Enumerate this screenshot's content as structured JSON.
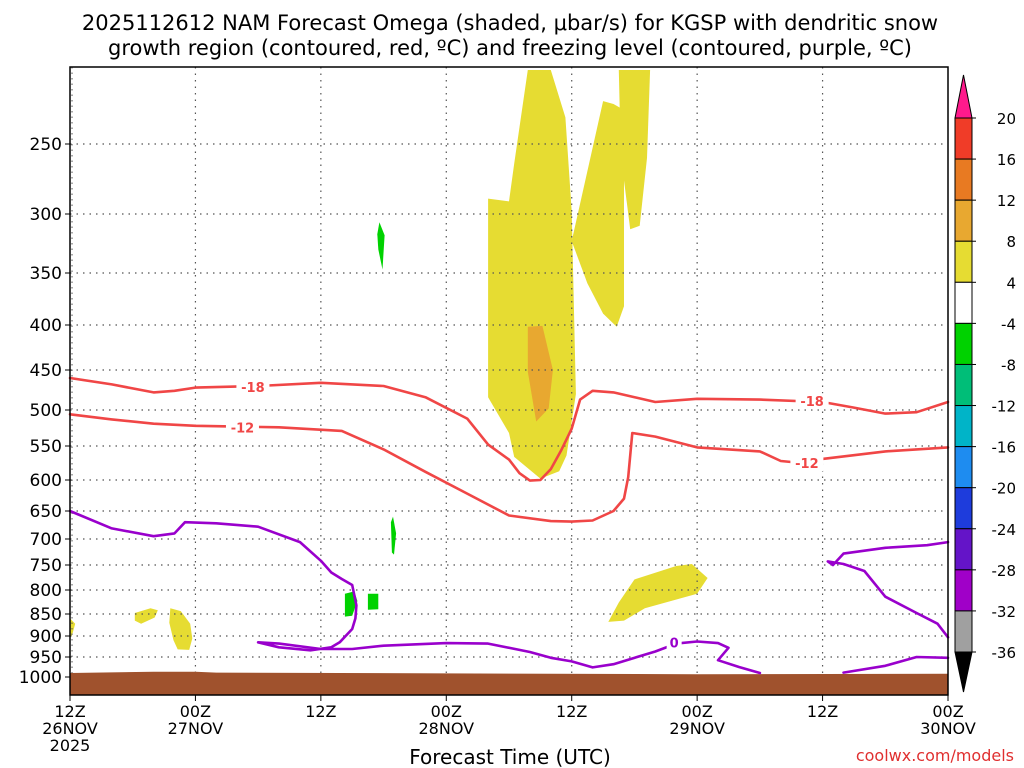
{
  "chart_data": {
    "type": "time-height",
    "title_line1": "2025112612 NAM Forecast Omega (shaded, μbar/s) for KGSP with dendritic snow",
    "title_line2": "growth region (contoured, red, ºC) and freezing level (contoured, purple, ºC)",
    "xlabel": "Forecast Time (UTC)",
    "credit": "coolwx.com/models",
    "x_range_hours": [
      0,
      84
    ],
    "y_range_mb": [
      1020,
      200
    ],
    "x_ticks": [
      {
        "h": 0,
        "l1": "12Z",
        "l2": "26NOV",
        "l3": "2025"
      },
      {
        "h": 12,
        "l1": "00Z",
        "l2": "27NOV",
        "l3": ""
      },
      {
        "h": 24,
        "l1": "12Z",
        "l2": "",
        "l3": ""
      },
      {
        "h": 36,
        "l1": "00Z",
        "l2": "28NOV",
        "l3": ""
      },
      {
        "h": 48,
        "l1": "12Z",
        "l2": "",
        "l3": ""
      },
      {
        "h": 60,
        "l1": "00Z",
        "l2": "29NOV",
        "l3": ""
      },
      {
        "h": 72,
        "l1": "12Z",
        "l2": "",
        "l3": ""
      },
      {
        "h": 84,
        "l1": "00Z",
        "l2": "30NOV",
        "l3": ""
      }
    ],
    "y_ticks": [
      {
        "p": 250,
        "label": "250"
      },
      {
        "p": 300,
        "label": "300"
      },
      {
        "p": 350,
        "label": "350"
      },
      {
        "p": 400,
        "label": "400"
      },
      {
        "p": 450,
        "label": "450"
      },
      {
        "p": 500,
        "label": "500"
      },
      {
        "p": 550,
        "label": "550"
      },
      {
        "p": 600,
        "label": "600"
      },
      {
        "p": 650,
        "label": "650"
      },
      {
        "p": 700,
        "label": "700"
      },
      {
        "p": 750,
        "label": "750"
      },
      {
        "p": 800,
        "label": "800"
      },
      {
        "p": 850,
        "label": "850"
      },
      {
        "p": 900,
        "label": "900"
      },
      {
        "p": 950,
        "label": "950"
      },
      {
        "p": 1000,
        "label": "1000"
      }
    ],
    "colorbar": [
      {
        "color": "#ff1a8c",
        "label": "20"
      },
      {
        "color": "#f03c28",
        "label": "16"
      },
      {
        "color": "#e87a22",
        "label": "12"
      },
      {
        "color": "#e8a830",
        "label": "8"
      },
      {
        "color": "#e6dc32",
        "label": "4"
      },
      {
        "color": "#ffffff",
        "label": "-4"
      },
      {
        "color": "#00d200",
        "label": "-8"
      },
      {
        "color": "#00be78",
        "label": "-12"
      },
      {
        "color": "#00b4c8",
        "label": "-16"
      },
      {
        "color": "#1e8cf0",
        "label": "-20"
      },
      {
        "color": "#1e3cdc",
        "label": "-24"
      },
      {
        "color": "#6414c8",
        "label": "-28"
      },
      {
        "color": "#a000c8",
        "label": "-32"
      },
      {
        "color": "#a0a0a0",
        "label": "-36"
      },
      {
        "color": "#000000",
        "label": ""
      }
    ],
    "terrain_color": "#a0522d",
    "terrain_surface": [
      [
        0,
        990
      ],
      [
        8,
        987
      ],
      [
        12,
        987
      ],
      [
        14,
        989
      ],
      [
        60,
        993
      ],
      [
        84,
        992
      ]
    ],
    "contours": [
      {
        "name": "-18 C isotherm",
        "label": "-18",
        "color": "#f04646",
        "points": [
          [
            0,
            460
          ],
          [
            4,
            468
          ],
          [
            8,
            478
          ],
          [
            10,
            476
          ],
          [
            12,
            472
          ],
          [
            18,
            470
          ],
          [
            24,
            466
          ],
          [
            30,
            470
          ],
          [
            34,
            484
          ],
          [
            38,
            512
          ],
          [
            40,
            548
          ],
          [
            42,
            570
          ],
          [
            43,
            590
          ],
          [
            44,
            601
          ],
          [
            45,
            600
          ],
          [
            46,
            584
          ],
          [
            47,
            556
          ],
          [
            48,
            526
          ],
          [
            48.8,
            487
          ],
          [
            50,
            476
          ],
          [
            52,
            478
          ],
          [
            56,
            490
          ],
          [
            60,
            486
          ],
          [
            66,
            487
          ],
          [
            72,
            490
          ],
          [
            75,
            497
          ],
          [
            78,
            505
          ],
          [
            81,
            503
          ],
          [
            84,
            490
          ]
        ],
        "label_points": [
          [
            17.5,
            471
          ],
          [
            71,
            489
          ]
        ]
      },
      {
        "name": "-12 C isotherm",
        "label": "-12",
        "color": "#f04646",
        "points": [
          [
            0,
            506
          ],
          [
            4,
            513
          ],
          [
            8,
            519
          ],
          [
            12,
            522
          ],
          [
            16,
            523
          ],
          [
            20,
            524
          ],
          [
            26,
            529
          ],
          [
            30,
            555
          ],
          [
            34,
            588
          ],
          [
            38,
            622
          ],
          [
            42,
            658
          ],
          [
            46,
            668
          ],
          [
            48,
            669
          ],
          [
            50,
            667
          ],
          [
            52,
            650
          ],
          [
            53,
            630
          ],
          [
            53.4,
            596
          ],
          [
            53.8,
            532
          ],
          [
            56,
            537
          ],
          [
            60,
            552
          ],
          [
            66,
            558
          ],
          [
            68,
            572
          ],
          [
            70,
            575
          ],
          [
            72,
            569
          ],
          [
            78,
            558
          ],
          [
            84,
            552
          ]
        ],
        "label_points": [
          [
            16.5,
            524
          ],
          [
            70.5,
            575
          ]
        ]
      },
      {
        "name": "0 C freezing level",
        "label": "0",
        "color": "#9900cc",
        "points": [
          [
            0,
            650
          ],
          [
            4,
            681
          ],
          [
            8,
            695
          ],
          [
            10,
            690
          ],
          [
            11,
            670
          ],
          [
            14,
            672
          ],
          [
            18,
            678
          ],
          [
            22,
            706
          ],
          [
            24,
            742
          ],
          [
            25,
            765
          ],
          [
            26,
            778
          ],
          [
            27,
            790
          ],
          [
            27.4,
            832
          ],
          [
            27.3,
            860
          ],
          [
            27,
            884
          ],
          [
            25.8,
            915
          ],
          [
            25,
            927
          ],
          [
            23,
            934
          ],
          [
            20,
            927
          ],
          [
            18,
            915
          ],
          [
            20,
            918
          ],
          [
            24,
            931
          ],
          [
            27,
            931
          ],
          [
            30,
            923
          ],
          [
            36,
            917
          ],
          [
            40,
            918
          ],
          [
            44,
            938
          ],
          [
            46,
            952
          ],
          [
            48,
            961
          ],
          [
            50,
            976
          ],
          [
            52,
            968
          ],
          [
            56,
            937
          ],
          [
            58,
            918
          ],
          [
            60,
            913
          ],
          [
            62,
            917
          ],
          [
            63,
            928
          ],
          [
            62,
            958
          ],
          [
            64,
            975
          ],
          [
            66,
            990
          ]
        ],
        "label_points": [
          [
            57.8,
            916
          ]
        ]
      },
      {
        "name": "0 C freezing level (right)",
        "label": "",
        "color": "#9900cc",
        "points": [
          [
            84,
            706
          ],
          [
            82,
            712
          ],
          [
            78,
            717
          ],
          [
            74,
            728
          ],
          [
            73,
            750
          ],
          [
            72.5,
            743
          ],
          [
            74,
            748
          ],
          [
            76,
            762
          ],
          [
            78,
            814
          ],
          [
            81,
            848
          ],
          [
            83,
            872
          ],
          [
            84,
            903
          ]
        ],
        "label_points": []
      },
      {
        "name": "0 C freezing level (low right)",
        "label": "",
        "color": "#9900cc",
        "points": [
          [
            74,
            989
          ],
          [
            78,
            972
          ],
          [
            81,
            950
          ],
          [
            84,
            952
          ]
        ],
        "label_points": []
      }
    ],
    "omega_regions": [
      {
        "value_band": "4 to 8",
        "color": "#e6dc32",
        "points": [
          [
            40,
            289
          ],
          [
            42,
            291
          ],
          [
            42.5,
            264
          ],
          [
            43.8,
            193
          ],
          [
            44.5,
            151
          ],
          [
            45,
            155
          ],
          [
            46,
            182
          ],
          [
            47.4,
            232
          ],
          [
            48,
            298
          ],
          [
            48.4,
            480
          ],
          [
            47.5,
            564
          ],
          [
            46.8,
            587
          ],
          [
            45,
            598
          ],
          [
            42.5,
            566
          ],
          [
            42,
            532
          ],
          [
            40,
            484
          ]
        ]
      },
      {
        "value_band": "4 to 8",
        "color": "#e6dc32",
        "points": [
          [
            51,
            221
          ],
          [
            52,
            223
          ],
          [
            53,
            227
          ],
          [
            53,
            382
          ],
          [
            52.3,
            402
          ],
          [
            51,
            389
          ],
          [
            49.5,
            360
          ],
          [
            48,
            323
          ]
        ]
      },
      {
        "value_band": "4 to 8",
        "color": "#e6dc32",
        "points": [
          [
            52.5,
            171
          ],
          [
            54,
            162
          ],
          [
            55.5,
            164
          ],
          [
            55.2,
            260
          ],
          [
            54.5,
            310
          ],
          [
            53.6,
            313
          ],
          [
            52.7,
            258
          ]
        ]
      },
      {
        "value_band": "8 to 12",
        "color": "#e8a830",
        "points": [
          [
            43.8,
            402
          ],
          [
            45.2,
            401
          ],
          [
            46.2,
            450
          ],
          [
            45.8,
            498
          ],
          [
            44.6,
            516
          ],
          [
            43.8,
            452
          ]
        ]
      },
      {
        "value_band": "4 to 8",
        "color": "#e6dc32",
        "points": [
          [
            51.5,
            868
          ],
          [
            52.5,
            826
          ],
          [
            54,
            779
          ],
          [
            58,
            752
          ],
          [
            59.5,
            748
          ],
          [
            61,
            776
          ],
          [
            60,
            808
          ],
          [
            55,
            838
          ],
          [
            53,
            865
          ]
        ]
      },
      {
        "value_band": "4 to 8",
        "color": "#e6dc32",
        "points": [
          [
            0,
            860
          ],
          [
            0.5,
            872
          ],
          [
            0.2,
            898
          ],
          [
            0,
            905
          ]
        ]
      },
      {
        "value_band": "4 to 8",
        "color": "#e6dc32",
        "points": [
          [
            6.2,
            848
          ],
          [
            7.7,
            838
          ],
          [
            8.4,
            842
          ],
          [
            8.1,
            858
          ],
          [
            6.8,
            872
          ],
          [
            6.2,
            865
          ]
        ]
      },
      {
        "value_band": "4 to 8",
        "color": "#e6dc32",
        "points": [
          [
            9.6,
            838
          ],
          [
            10.6,
            844
          ],
          [
            11.5,
            872
          ],
          [
            11.7,
            906
          ],
          [
            11.4,
            933
          ],
          [
            10.3,
            932
          ],
          [
            9.9,
            910
          ],
          [
            9.5,
            870
          ]
        ]
      },
      {
        "value_band": "-4 to -8",
        "color": "#00d200",
        "points": [
          [
            29.6,
            307
          ],
          [
            30.1,
            318
          ],
          [
            29.9,
            347
          ],
          [
            29.5,
            330
          ],
          [
            29.4,
            317
          ]
        ]
      },
      {
        "value_band": "-4 to -8",
        "color": "#00d200",
        "points": [
          [
            30.7,
            670
          ],
          [
            30.9,
            660
          ],
          [
            31.2,
            690
          ],
          [
            31.0,
            730
          ],
          [
            30.8,
            726
          ]
        ]
      },
      {
        "value_band": "-4 to -8",
        "color": "#00d200",
        "points": [
          [
            26.3,
            808
          ],
          [
            27.2,
            803
          ],
          [
            27.5,
            823
          ],
          [
            27.0,
            854
          ],
          [
            26.3,
            856
          ]
        ]
      },
      {
        "value_band": "-4 to -8",
        "color": "#00d200",
        "points": [
          [
            28.5,
            808
          ],
          [
            29.5,
            808
          ],
          [
            29.5,
            840
          ],
          [
            28.5,
            841
          ]
        ]
      }
    ]
  }
}
